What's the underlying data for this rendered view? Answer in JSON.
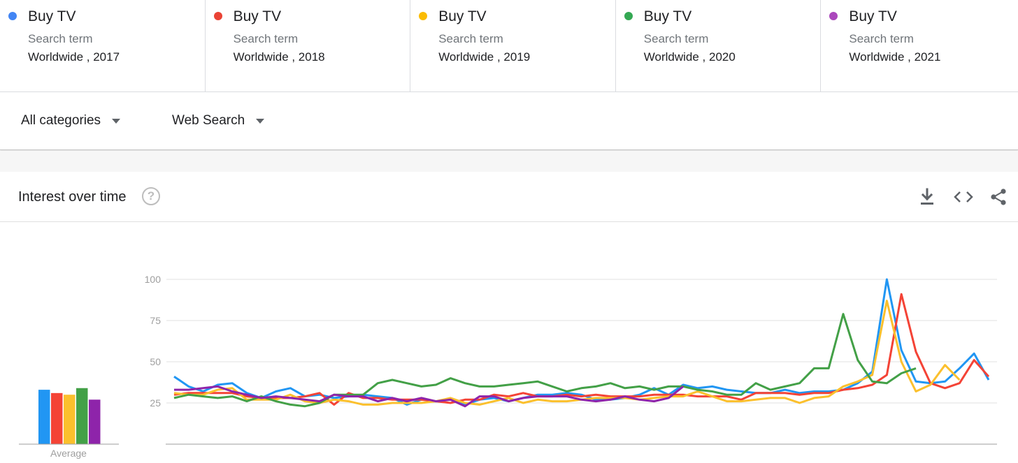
{
  "terms": [
    {
      "name": "Buy TV",
      "type": "Search term",
      "region": "Worldwide , 2017",
      "color": "#4285f4"
    },
    {
      "name": "Buy TV",
      "type": "Search term",
      "region": "Worldwide , 2018",
      "color": "#ea4335"
    },
    {
      "name": "Buy TV",
      "type": "Search term",
      "region": "Worldwide , 2019",
      "color": "#fbbc04"
    },
    {
      "name": "Buy TV",
      "type": "Search term",
      "region": "Worldwide , 2020",
      "color": "#34a853"
    },
    {
      "name": "Buy TV",
      "type": "Search term",
      "region": "Worldwide , 2021",
      "color": "#ab47bc"
    }
  ],
  "filters": {
    "category": "All categories",
    "search_type": "Web Search"
  },
  "card": {
    "title": "Interest over time",
    "help_icon": "help-circle-icon",
    "download_icon": "download-icon",
    "embed_icon": "embed-code-icon",
    "share_icon": "share-icon"
  },
  "chart_data": {
    "type": "line",
    "yticks": [
      25,
      50,
      75,
      100
    ],
    "ylim": [
      0,
      100
    ],
    "average_label": "Average",
    "averages": [
      33,
      31,
      30,
      34,
      27
    ],
    "series": [
      {
        "color": "#2196f3",
        "values": [
          41,
          35,
          32,
          36,
          37,
          31,
          28,
          32,
          34,
          29,
          30,
          28,
          29,
          30,
          29,
          28,
          24,
          27,
          26,
          27,
          24,
          27,
          28,
          26,
          28,
          30,
          30,
          31,
          30,
          27,
          27,
          28,
          30,
          34,
          30,
          36,
          34,
          35,
          33,
          32,
          31,
          31,
          33,
          31,
          32,
          32,
          33,
          37,
          44,
          100,
          57,
          38,
          37,
          38,
          46,
          55,
          39
        ]
      },
      {
        "color": "#f44336",
        "values": [
          30,
          31,
          31,
          31,
          31,
          29,
          28,
          28,
          28,
          29,
          31,
          24,
          31,
          28,
          28,
          27,
          27,
          27,
          26,
          25,
          27,
          27,
          30,
          29,
          31,
          29,
          29,
          30,
          29,
          30,
          29,
          29,
          29,
          30,
          30,
          30,
          29,
          29,
          29,
          27,
          31,
          31,
          31,
          30,
          31,
          31,
          33,
          34,
          36,
          42,
          91,
          56,
          37,
          34,
          37,
          51,
          41
        ]
      },
      {
        "color": "#fbc02d",
        "values": [
          31,
          30,
          30,
          33,
          34,
          27,
          27,
          27,
          30,
          26,
          25,
          27,
          26,
          24,
          24,
          25,
          25,
          25,
          26,
          28,
          25,
          24,
          26,
          28,
          25,
          27,
          26,
          26,
          27,
          28,
          28,
          28,
          27,
          28,
          29,
          29,
          32,
          29,
          26,
          26,
          27,
          28,
          28,
          25,
          28,
          29,
          35,
          38,
          42,
          87,
          50,
          32,
          36,
          48,
          39
        ]
      },
      {
        "color": "#43a047",
        "values": [
          28,
          30,
          29,
          28,
          29,
          26,
          29,
          26,
          24,
          23,
          25,
          30,
          30,
          30,
          37,
          39,
          37,
          35,
          36,
          40,
          37,
          35,
          35,
          36,
          37,
          38,
          35,
          32,
          34,
          35,
          37,
          34,
          35,
          33,
          35,
          35,
          33,
          32,
          30,
          30,
          37,
          33,
          35,
          37,
          46,
          46,
          79,
          51,
          38,
          37,
          43,
          46
        ]
      },
      {
        "color": "#8e24aa",
        "values": [
          33,
          33,
          34,
          35,
          32,
          30,
          28,
          29,
          28,
          27,
          26,
          30,
          29,
          29,
          26,
          28,
          26,
          28,
          26,
          27,
          23,
          29,
          29,
          26,
          28,
          29,
          29,
          29,
          27,
          26,
          27,
          29,
          27,
          26,
          28,
          35
        ]
      }
    ]
  }
}
